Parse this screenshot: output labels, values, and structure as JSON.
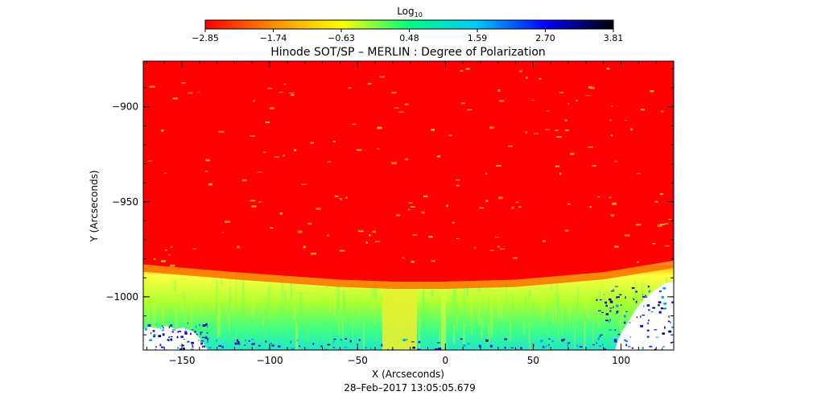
{
  "chart_data": {
    "type": "heatmap",
    "title": "Hinode SOT/SP – MERLIN : Degree of Polarization",
    "xlabel": "X (Arcseconds)",
    "ylabel": "Y (Arcseconds)",
    "footer": "28–Feb–2017 13:05:05.679",
    "xlim": [
      -172,
      130
    ],
    "ylim": [
      -1028,
      -876
    ],
    "x_ticks": [
      -150,
      -100,
      -50,
      0,
      50,
      100
    ],
    "x_tick_labels": [
      "−150",
      "−100",
      "−50",
      "0",
      "50",
      "100"
    ],
    "y_ticks": [
      -900,
      -950,
      -1000
    ],
    "y_tick_labels": [
      "−900",
      "−950",
      "−1000"
    ],
    "colorbar": {
      "label_base": "Log",
      "label_sub": "10",
      "range": [
        -2.85,
        3.81
      ],
      "ticks": [
        -2.85,
        -1.74,
        -0.63,
        0.48,
        1.59,
        2.7,
        3.81
      ],
      "tick_labels": [
        "−2.85",
        "−1.74",
        "−0.63",
        "0.48",
        "1.59",
        "2.70",
        "3.81"
      ],
      "colors": [
        "#ff0000",
        "#ff8c00",
        "#ffff00",
        "#00ff80",
        "#00c8ff",
        "#0000ff",
        "#000000"
      ]
    },
    "limb": {
      "points": [
        [
          -172,
          -983
        ],
        [
          -120,
          -987
        ],
        [
          -60,
          -991
        ],
        [
          -30,
          -992
        ],
        [
          0,
          -992
        ],
        [
          40,
          -991
        ],
        [
          90,
          -987
        ],
        [
          130,
          -981
        ]
      ],
      "disk_value": -2.85,
      "offlimb_value": 0.1,
      "band_value": -1.5
    },
    "notes": "Red (low) degree of polarization on the solar disk above the limb; yellow/green/cyan/blue off-limb; white (no data) at lower corners."
  }
}
